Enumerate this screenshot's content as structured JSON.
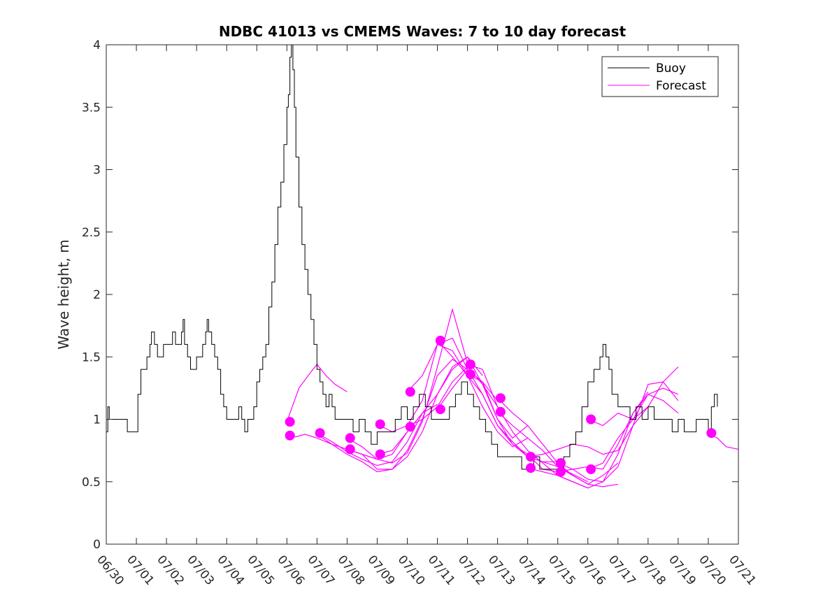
{
  "chart_data": {
    "type": "line",
    "title": "NDBC 41013 vs CMEMS Waves: 7 to 10 day forecast",
    "xlabel": "",
    "ylabel": "Wave height, m",
    "x_range": [
      0,
      21
    ],
    "ylim": [
      0,
      4
    ],
    "x_tick_labels": [
      "06/30",
      "07/01",
      "07/02",
      "07/03",
      "07/04",
      "07/05",
      "07/06",
      "07/07",
      "07/08",
      "07/09",
      "07/10",
      "07/11",
      "07/12",
      "07/13",
      "07/14",
      "07/15",
      "07/16",
      "07/17",
      "07/18",
      "07/19",
      "07/20",
      "07/21"
    ],
    "y_ticks": [
      0,
      0.5,
      1,
      1.5,
      2,
      2.5,
      3,
      3.5,
      4
    ],
    "y_tick_labels": [
      "0",
      "0.5",
      "1",
      "1.5",
      "2",
      "2.5",
      "3",
      "3.5",
      "4"
    ],
    "grid": false,
    "legend_position": "top-right",
    "colors": {
      "buoy": "#000000",
      "forecast": "#ff00ff",
      "axis": "#262626"
    },
    "series": [
      {
        "name": "Buoy",
        "x": [
          0,
          0.05,
          0.1,
          0.3,
          0.5,
          0.7,
          0.85,
          0.95,
          1.05,
          1.15,
          1.25,
          1.35,
          1.45,
          1.5,
          1.6,
          1.7,
          1.8,
          1.9,
          2.0,
          2.1,
          2.2,
          2.3,
          2.4,
          2.5,
          2.55,
          2.6,
          2.7,
          2.8,
          2.9,
          3.0,
          3.1,
          3.2,
          3.3,
          3.35,
          3.4,
          3.5,
          3.6,
          3.7,
          3.8,
          3.9,
          4.0,
          4.1,
          4.2,
          4.3,
          4.4,
          4.5,
          4.6,
          4.7,
          4.8,
          4.9,
          5.0,
          5.1,
          5.2,
          5.3,
          5.4,
          5.5,
          5.6,
          5.7,
          5.8,
          5.9,
          6.0,
          6.05,
          6.1,
          6.15,
          6.2,
          6.25,
          6.3,
          6.4,
          6.5,
          6.6,
          6.7,
          6.8,
          6.9,
          7.0,
          7.1,
          7.2,
          7.3,
          7.4,
          7.5,
          7.6,
          7.8,
          8.0,
          8.2,
          8.4,
          8.6,
          8.8,
          9.0,
          9.2,
          9.4,
          9.6,
          9.8,
          10.0,
          10.1,
          10.2,
          10.4,
          10.6,
          10.8,
          11.0,
          11.2,
          11.4,
          11.6,
          11.8,
          12.0,
          12.2,
          12.4,
          12.6,
          12.8,
          13.0,
          13.2,
          13.4,
          13.6,
          13.8,
          14.0,
          14.2,
          14.4,
          14.6,
          14.8,
          15.0,
          15.2,
          15.4,
          15.6,
          15.8,
          16.0,
          16.2,
          16.4,
          16.5,
          16.6,
          16.7,
          16.8,
          17.0,
          17.2,
          17.4,
          17.6,
          17.8,
          18.0,
          18.2,
          18.4,
          18.6,
          18.8,
          19.0,
          19.2,
          19.4,
          19.6,
          19.8,
          20.0,
          20.1,
          20.2,
          20.3
        ],
        "values": [
          0.9,
          1.1,
          1.0,
          1.0,
          1.0,
          0.9,
          0.9,
          0.9,
          1.2,
          1.4,
          1.4,
          1.5,
          1.6,
          1.7,
          1.6,
          1.5,
          1.5,
          1.6,
          1.6,
          1.6,
          1.7,
          1.6,
          1.6,
          1.7,
          1.8,
          1.6,
          1.5,
          1.4,
          1.4,
          1.5,
          1.5,
          1.6,
          1.7,
          1.8,
          1.7,
          1.6,
          1.5,
          1.4,
          1.2,
          1.1,
          1.0,
          1.0,
          1.0,
          1.0,
          1.1,
          1.0,
          0.9,
          1.0,
          1.0,
          1.1,
          1.3,
          1.4,
          1.5,
          1.6,
          1.9,
          2.1,
          2.4,
          2.7,
          2.9,
          3.2,
          3.5,
          3.6,
          3.9,
          4.0,
          3.8,
          3.5,
          3.1,
          2.7,
          2.4,
          2.2,
          2.0,
          1.8,
          1.6,
          1.4,
          1.3,
          1.2,
          1.1,
          1.2,
          1.1,
          1.0,
          1.0,
          1.0,
          0.9,
          1.0,
          0.9,
          0.8,
          0.9,
          0.9,
          0.9,
          1.0,
          1.1,
          1.0,
          1.0,
          1.1,
          1.2,
          1.1,
          1.0,
          1.0,
          1.0,
          1.1,
          1.2,
          1.3,
          1.2,
          1.1,
          1.0,
          0.9,
          0.8,
          0.7,
          0.7,
          0.7,
          0.7,
          0.6,
          0.6,
          0.7,
          0.6,
          0.6,
          0.6,
          0.6,
          0.7,
          0.8,
          0.9,
          1.1,
          1.3,
          1.4,
          1.5,
          1.6,
          1.5,
          1.4,
          1.2,
          1.1,
          1.1,
          1.0,
          1.1,
          1.0,
          1.1,
          1.0,
          1.0,
          1.0,
          0.9,
          1.0,
          0.9,
          0.9,
          1.0,
          1.0,
          0.9,
          1.1,
          1.2,
          1.1
        ]
      },
      {
        "name": "Forecast",
        "x": [
          6.0,
          6.5,
          7.0,
          7.5,
          8.0,
          8.5,
          9.0,
          9.5,
          10.0
        ],
        "values": [
          0.87,
          0.85,
          0.83,
          0.75,
          0.68,
          0.62,
          0.6,
          0.72,
          0.95
        ]
      }
    ],
    "forecast_curves": [
      {
        "x": [
          6.0,
          6.4,
          6.8,
          7.0,
          7.3,
          7.6,
          8.0
        ],
        "values": [
          0.98,
          1.25,
          1.38,
          1.44,
          1.35,
          1.28,
          1.22
        ]
      },
      {
        "x": [
          6.0,
          6.3,
          6.6,
          7.0,
          7.5,
          8.0,
          8.5,
          9.0,
          9.5,
          10.0
        ],
        "values": [
          0.87,
          0.86,
          0.88,
          0.85,
          0.8,
          0.76,
          0.72,
          0.68,
          0.72,
          0.9
        ]
      },
      {
        "x": [
          7.0,
          7.5,
          8.0,
          8.5,
          9.0,
          9.5,
          10.0,
          10.5,
          11.0
        ],
        "values": [
          0.89,
          0.82,
          0.74,
          0.68,
          0.63,
          0.66,
          0.82,
          1.05,
          1.12
        ]
      },
      {
        "x": [
          7.0,
          7.5,
          8.0,
          8.5,
          9.0,
          9.5,
          10.0,
          10.5,
          11.0,
          11.5,
          12.0
        ],
        "values": [
          0.88,
          0.8,
          0.72,
          0.66,
          0.58,
          0.6,
          0.75,
          1.0,
          1.35,
          1.48,
          1.4
        ]
      },
      {
        "x": [
          8.0,
          8.5,
          9.0,
          9.5,
          10.0,
          10.5,
          11.0,
          11.5,
          12.0
        ],
        "values": [
          0.85,
          0.78,
          0.68,
          0.65,
          0.73,
          0.98,
          1.42,
          1.88,
          1.45
        ]
      },
      {
        "x": [
          8.0,
          8.5,
          9.0,
          9.5,
          10.0,
          10.5,
          11.0,
          11.5,
          12.0,
          12.5
        ],
        "values": [
          0.76,
          0.72,
          0.6,
          0.6,
          0.7,
          0.9,
          1.2,
          1.42,
          1.5,
          1.35
        ]
      },
      {
        "x": [
          9.0,
          9.5,
          10.0,
          10.5,
          11.0,
          11.5,
          12.0,
          12.5,
          13.0
        ],
        "values": [
          0.96,
          0.9,
          0.95,
          1.15,
          1.6,
          1.65,
          1.4,
          1.3,
          1.15
        ]
      },
      {
        "x": [
          9.0,
          9.5,
          10.0,
          10.5,
          11.0,
          11.5,
          12.0,
          12.5,
          13.0
        ],
        "values": [
          0.72,
          0.75,
          0.9,
          1.05,
          1.2,
          1.4,
          1.5,
          1.28,
          1.1
        ]
      },
      {
        "x": [
          10.0,
          10.5,
          11.0,
          11.5,
          12.0,
          12.5,
          13.0,
          13.5,
          14.0
        ],
        "values": [
          1.22,
          1.35,
          1.6,
          1.55,
          1.35,
          1.1,
          0.9,
          0.78,
          0.85
        ]
      },
      {
        "x": [
          10.0,
          10.5,
          11.0,
          11.5,
          12.0,
          12.5,
          13.0,
          13.5,
          14.0
        ],
        "values": [
          0.94,
          1.0,
          1.1,
          1.3,
          1.42,
          1.28,
          1.0,
          0.85,
          0.95
        ]
      },
      {
        "x": [
          11.0,
          11.5,
          12.0,
          12.5,
          13.0,
          13.5,
          14.0,
          14.5,
          15.0
        ],
        "values": [
          1.63,
          1.5,
          1.35,
          1.2,
          0.95,
          0.8,
          0.72,
          0.6,
          0.58
        ]
      },
      {
        "x": [
          11.0,
          11.5,
          12.0,
          12.5,
          13.0,
          13.5,
          14.0,
          14.5,
          15.0
        ],
        "values": [
          1.08,
          1.25,
          1.4,
          1.2,
          0.95,
          0.82,
          0.7,
          0.66,
          0.66
        ]
      },
      {
        "x": [
          12.0,
          12.5,
          13.0,
          13.5,
          14.0,
          14.5,
          15.0,
          15.5,
          16.0
        ],
        "values": [
          1.44,
          1.4,
          1.1,
          0.9,
          0.75,
          0.65,
          0.55,
          0.5,
          0.45
        ]
      },
      {
        "x": [
          12.0,
          12.5,
          13.0,
          13.5,
          14.0,
          14.5,
          15.0,
          15.5,
          16.0
        ],
        "values": [
          1.36,
          1.3,
          1.0,
          0.8,
          0.7,
          0.66,
          0.62,
          0.56,
          0.5
        ]
      },
      {
        "x": [
          13.0,
          13.5,
          14.0,
          14.5,
          15.0,
          15.5,
          16.0,
          16.5,
          17.0
        ],
        "values": [
          1.17,
          1.05,
          0.95,
          0.8,
          0.65,
          0.55,
          0.48,
          0.46,
          0.48
        ]
      },
      {
        "x": [
          13.0,
          13.5,
          14.0,
          14.5,
          15.0,
          15.5,
          16.0,
          16.5,
          17.0
        ],
        "values": [
          1.06,
          0.95,
          0.85,
          0.75,
          0.62,
          0.55,
          0.48,
          0.55,
          0.65
        ]
      },
      {
        "x": [
          14.0,
          14.5,
          15.0,
          15.5,
          16.0,
          16.5,
          17.0,
          17.5,
          18.0
        ],
        "values": [
          0.7,
          0.72,
          0.76,
          0.8,
          0.78,
          0.72,
          0.75,
          0.95,
          1.1
        ]
      },
      {
        "x": [
          14.0,
          14.5,
          15.0,
          15.5,
          16.0,
          16.5,
          17.0,
          17.5,
          18.0
        ],
        "values": [
          0.61,
          0.58,
          0.55,
          0.5,
          0.45,
          0.5,
          0.72,
          1.05,
          1.22
        ]
      },
      {
        "x": [
          15.0,
          15.5,
          16.0,
          16.5,
          17.0,
          17.5,
          18.0,
          18.5,
          19.0
        ],
        "values": [
          0.65,
          0.6,
          0.52,
          0.5,
          0.62,
          0.95,
          1.28,
          1.3,
          1.15
        ]
      },
      {
        "x": [
          15.0,
          15.5,
          16.0,
          16.5,
          17.0,
          17.5,
          18.0,
          18.5,
          19.0
        ],
        "values": [
          0.58,
          0.6,
          0.62,
          0.6,
          0.8,
          1.05,
          1.2,
          1.15,
          1.05
        ]
      },
      {
        "x": [
          16.0,
          16.5,
          17.0,
          17.5,
          18.0,
          18.5,
          19.0
        ],
        "values": [
          1.0,
          0.95,
          1.05,
          1.0,
          1.1,
          1.3,
          1.42
        ]
      },
      {
        "x": [
          16.0,
          16.5,
          17.0,
          17.5,
          18.0,
          18.5,
          19.0
        ],
        "values": [
          0.6,
          0.65,
          0.85,
          1.0,
          1.2,
          1.25,
          1.2
        ]
      },
      {
        "x": [
          20.0,
          20.3,
          20.6,
          21.0
        ],
        "values": [
          0.89,
          0.85,
          0.78,
          0.76
        ]
      }
    ],
    "forecast_markers": {
      "x": [
        6.1,
        6.1,
        7.1,
        8.1,
        8.1,
        9.1,
        9.1,
        10.1,
        10.1,
        11.1,
        11.1,
        12.1,
        12.1,
        13.1,
        13.1,
        14.1,
        14.1,
        15.1,
        15.1,
        16.1,
        16.1,
        20.1
      ],
      "values": [
        0.98,
        0.87,
        0.89,
        0.85,
        0.76,
        0.96,
        0.72,
        1.22,
        0.94,
        1.63,
        1.08,
        1.44,
        1.36,
        1.17,
        1.06,
        0.7,
        0.61,
        0.65,
        0.58,
        1.0,
        0.6,
        0.89
      ]
    }
  }
}
